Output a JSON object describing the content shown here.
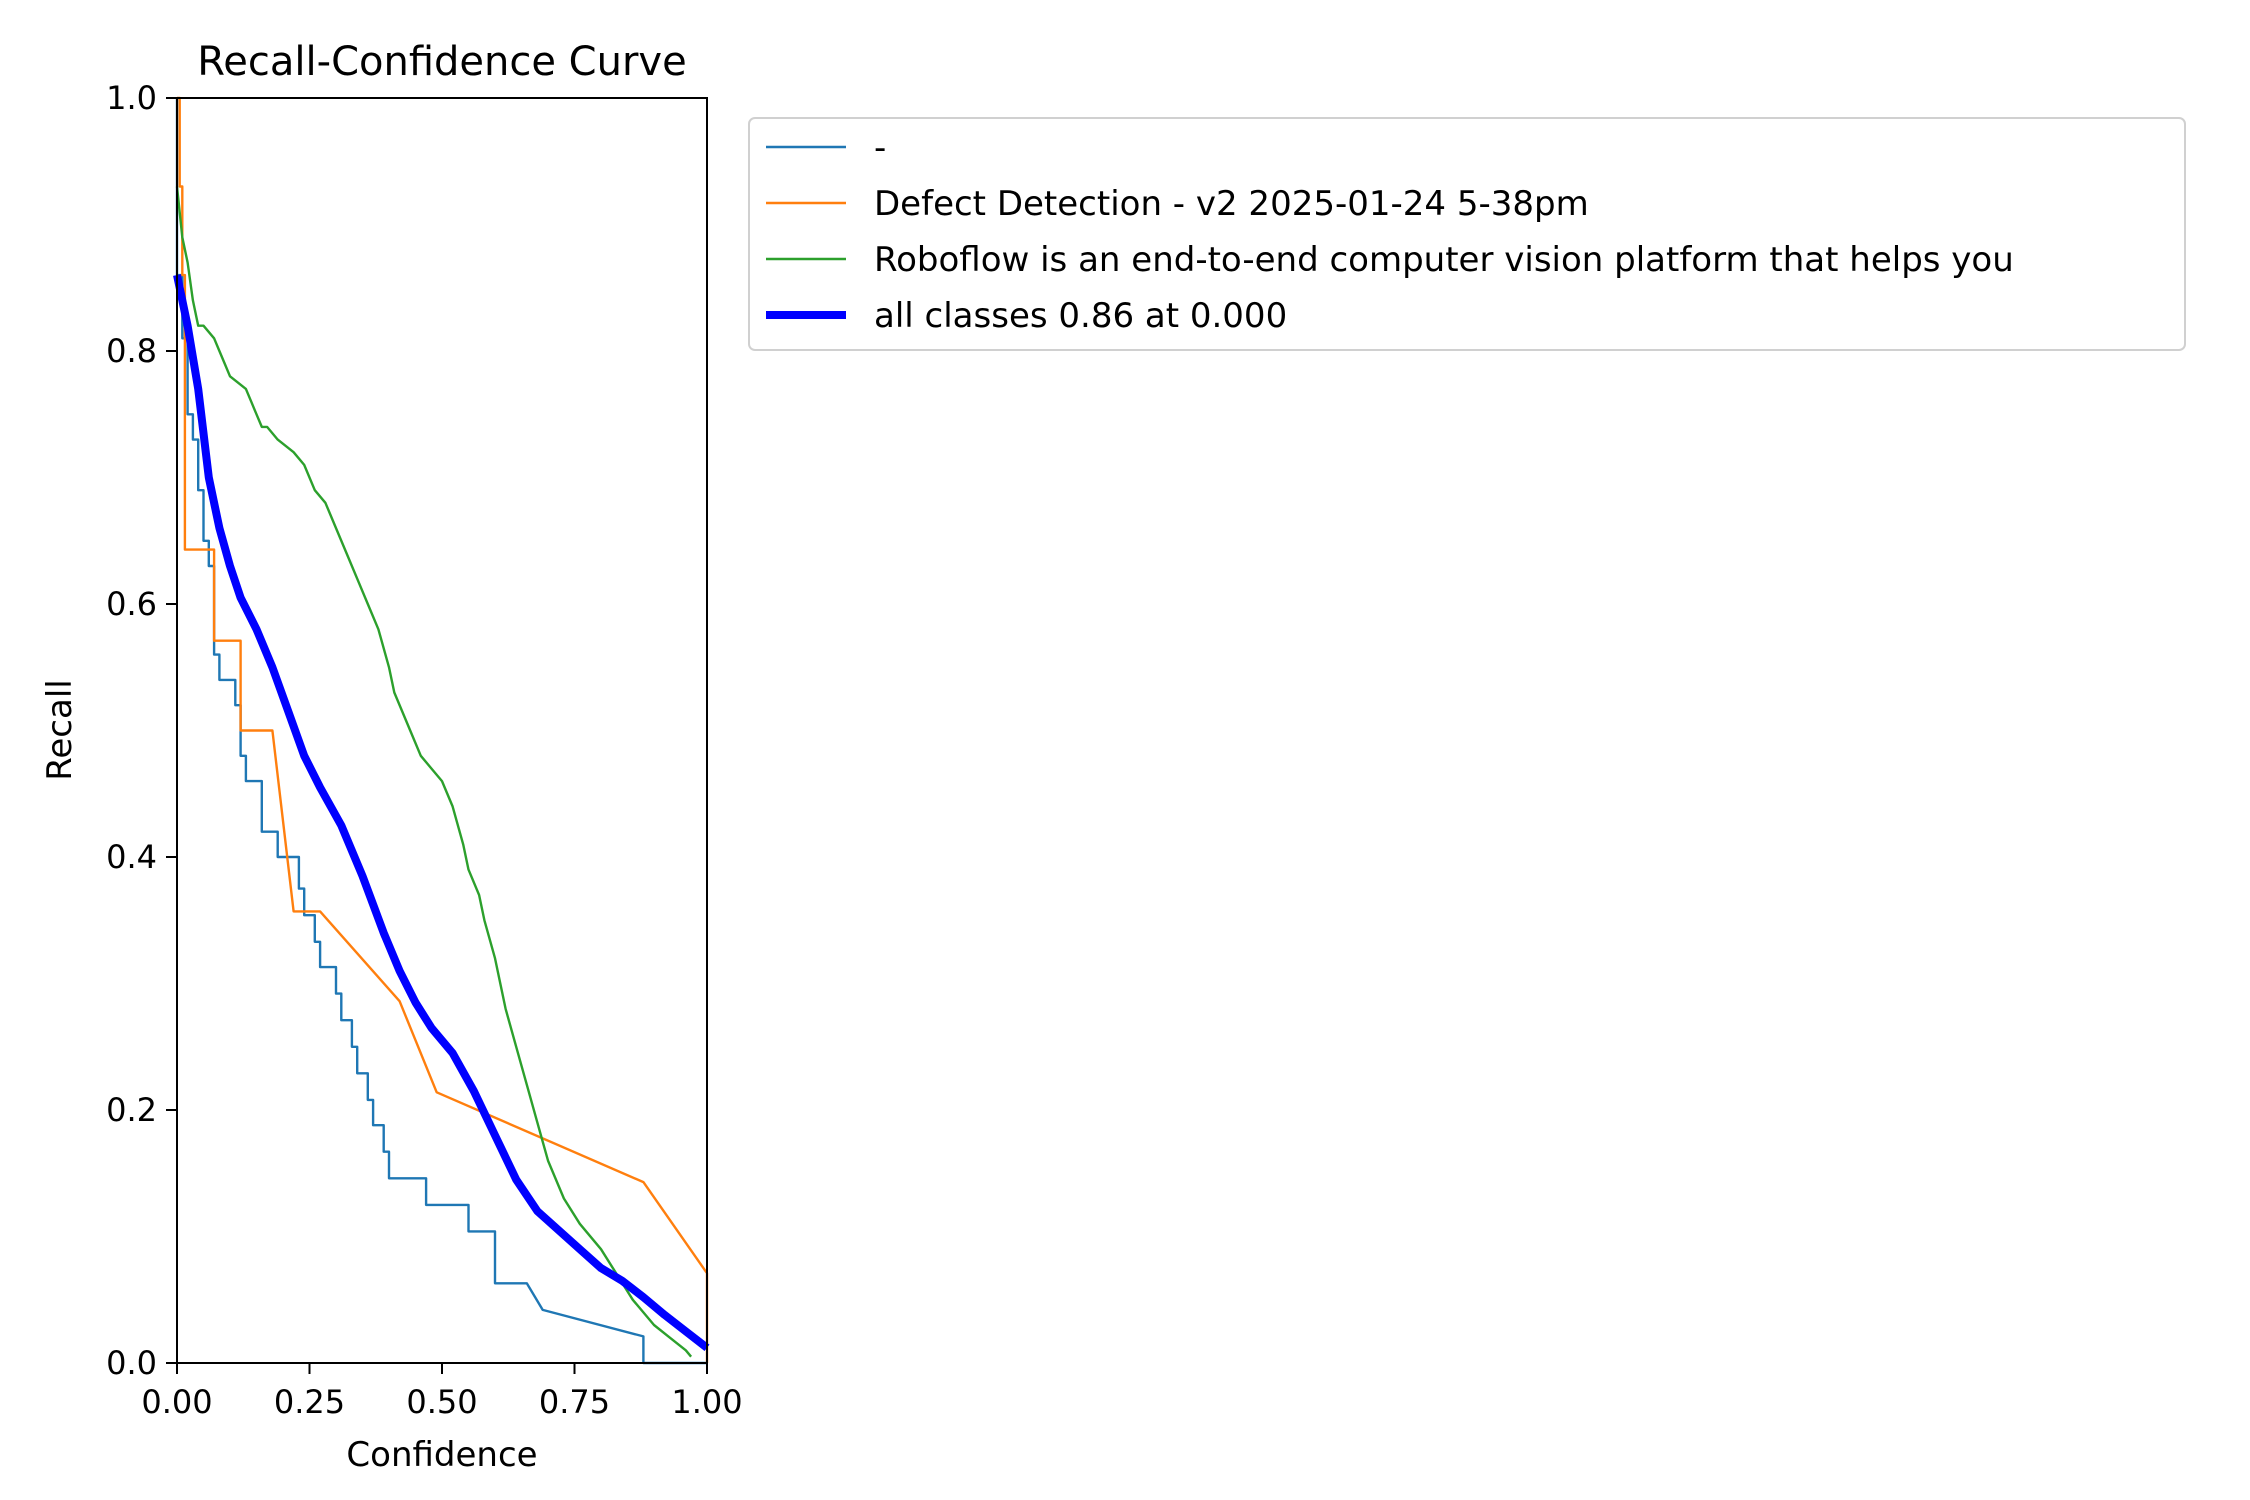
{
  "chart_data": {
    "type": "line",
    "title": "Recall-Confidence Curve",
    "xlabel": "Confidence",
    "ylabel": "Recall",
    "xlim": [
      0,
      1
    ],
    "ylim": [
      0,
      1
    ],
    "grid": false,
    "legend_position": "outside-top-right",
    "xticks": [
      "0.00",
      "0.25",
      "0.50",
      "0.75",
      "1.00"
    ],
    "xtick_values": [
      0,
      0.25,
      0.5,
      0.75,
      1.0
    ],
    "yticks": [
      "0.0",
      "0.2",
      "0.4",
      "0.6",
      "0.8",
      "1.0"
    ],
    "ytick_values": [
      0,
      0.2,
      0.4,
      0.6,
      0.8,
      1.0
    ],
    "series": [
      {
        "name": "-",
        "color": "#1f77b4",
        "width": "thin",
        "x": [
          0.0,
          0.0,
          0.01,
          0.01,
          0.02,
          0.02,
          0.03,
          0.03,
          0.04,
          0.04,
          0.05,
          0.05,
          0.06,
          0.06,
          0.07,
          0.07,
          0.08,
          0.08,
          0.11,
          0.11,
          0.12,
          0.12,
          0.13,
          0.13,
          0.16,
          0.16,
          0.19,
          0.19,
          0.2,
          0.2,
          0.23,
          0.23,
          0.24,
          0.24,
          0.26,
          0.26,
          0.27,
          0.27,
          0.3,
          0.3,
          0.31,
          0.31,
          0.33,
          0.33,
          0.34,
          0.34,
          0.36,
          0.36,
          0.37,
          0.37,
          0.39,
          0.39,
          0.4,
          0.4,
          0.42,
          0.42,
          0.47,
          0.47,
          0.53,
          0.53,
          0.55,
          0.55,
          0.6,
          0.6,
          0.66,
          0.66,
          0.69,
          0.88,
          0.88,
          1.0
        ],
        "y": [
          1.0,
          0.86,
          0.86,
          0.81,
          0.81,
          0.75,
          0.75,
          0.73,
          0.73,
          0.69,
          0.69,
          0.65,
          0.65,
          0.63,
          0.63,
          0.56,
          0.56,
          0.54,
          0.54,
          0.52,
          0.52,
          0.48,
          0.48,
          0.46,
          0.46,
          0.42,
          0.42,
          0.4,
          0.4,
          0.4,
          0.4,
          0.375,
          0.375,
          0.354,
          0.354,
          0.333,
          0.333,
          0.313,
          0.313,
          0.292,
          0.292,
          0.271,
          0.271,
          0.25,
          0.25,
          0.229,
          0.229,
          0.208,
          0.208,
          0.188,
          0.188,
          0.167,
          0.167,
          0.146,
          0.146,
          0.146,
          0.146,
          0.125,
          0.125,
          0.125,
          0.125,
          0.104,
          0.104,
          0.063,
          0.063,
          0.063,
          0.042,
          0.021,
          0.0,
          0.0
        ]
      },
      {
        "name": "Defect Detection - v2 2025-01-24 5-38pm",
        "color": "#ff7f0e",
        "width": "thin",
        "x": [
          0.0,
          0.005,
          0.005,
          0.01,
          0.01,
          0.015,
          0.015,
          0.06,
          0.06,
          0.07,
          0.07,
          0.12,
          0.12,
          0.18,
          0.18,
          0.22,
          0.23,
          0.27,
          0.42,
          0.49,
          0.88,
          1.0,
          1.0
        ],
        "y": [
          1.0,
          1.0,
          0.93,
          0.93,
          0.86,
          0.86,
          0.643,
          0.643,
          0.643,
          0.643,
          0.571,
          0.571,
          0.5,
          0.5,
          0.5,
          0.357,
          0.357,
          0.357,
          0.286,
          0.214,
          0.143,
          0.071,
          0.0
        ]
      },
      {
        "name": "Roboflow is an end-to-end computer vision platform that helps you",
        "color": "#2ca02c",
        "width": "thin",
        "x": [
          0.0,
          0.01,
          0.02,
          0.03,
          0.04,
          0.05,
          0.07,
          0.08,
          0.09,
          0.1,
          0.13,
          0.14,
          0.15,
          0.16,
          0.17,
          0.19,
          0.22,
          0.24,
          0.26,
          0.28,
          0.3,
          0.32,
          0.34,
          0.36,
          0.38,
          0.4,
          0.41,
          0.44,
          0.46,
          0.48,
          0.5,
          0.52,
          0.54,
          0.55,
          0.57,
          0.58,
          0.6,
          0.62,
          0.64,
          0.66,
          0.68,
          0.7,
          0.72,
          0.73,
          0.76,
          0.8,
          0.83,
          0.86,
          0.88,
          0.9,
          0.93,
          0.96,
          0.97
        ],
        "y": [
          0.93,
          0.89,
          0.87,
          0.84,
          0.82,
          0.82,
          0.81,
          0.8,
          0.79,
          0.78,
          0.77,
          0.76,
          0.75,
          0.74,
          0.74,
          0.73,
          0.72,
          0.71,
          0.69,
          0.68,
          0.66,
          0.64,
          0.62,
          0.6,
          0.58,
          0.55,
          0.53,
          0.5,
          0.48,
          0.47,
          0.46,
          0.44,
          0.41,
          0.39,
          0.37,
          0.35,
          0.32,
          0.28,
          0.25,
          0.22,
          0.19,
          0.16,
          0.14,
          0.13,
          0.11,
          0.09,
          0.07,
          0.05,
          0.04,
          0.03,
          0.02,
          0.01,
          0.005
        ]
      },
      {
        "name": "all classes 0.86 at 0.000",
        "color": "#0000ff",
        "width": "thick",
        "x": [
          0.0,
          0.02,
          0.04,
          0.06,
          0.08,
          0.1,
          0.12,
          0.15,
          0.18,
          0.21,
          0.24,
          0.27,
          0.31,
          0.35,
          0.39,
          0.42,
          0.45,
          0.48,
          0.52,
          0.56,
          0.6,
          0.64,
          0.68,
          0.72,
          0.76,
          0.8,
          0.84,
          0.88,
          0.92,
          0.96,
          1.0
        ],
        "y": [
          0.86,
          0.82,
          0.77,
          0.7,
          0.66,
          0.63,
          0.605,
          0.58,
          0.55,
          0.515,
          0.48,
          0.455,
          0.425,
          0.385,
          0.34,
          0.31,
          0.285,
          0.265,
          0.245,
          0.215,
          0.18,
          0.145,
          0.12,
          0.105,
          0.09,
          0.075,
          0.065,
          0.052,
          0.038,
          0.025,
          0.012
        ]
      }
    ]
  }
}
